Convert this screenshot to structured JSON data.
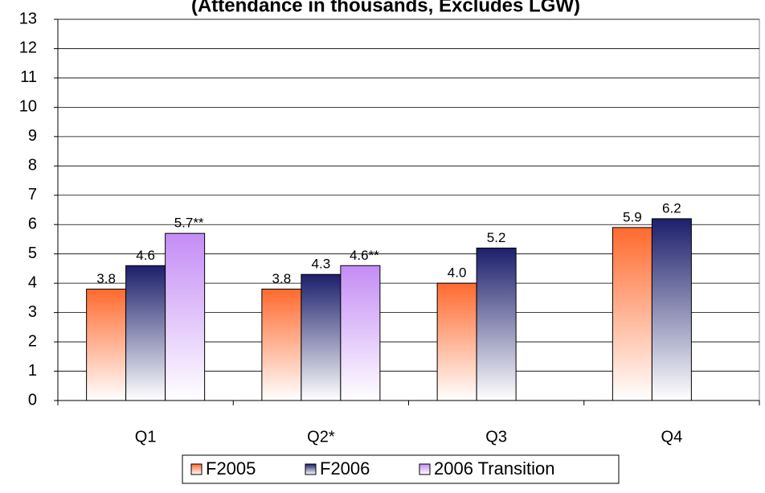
{
  "chart_data": {
    "type": "bar",
    "title": "(Attendance in thousands, Excludes LGW)",
    "categories": [
      "Q1",
      "Q2*",
      "Q3",
      "Q4"
    ],
    "series": [
      {
        "name": "F2005",
        "color": "#ff6a2e",
        "values": [
          3.8,
          3.8,
          4.0,
          5.9
        ],
        "value_labels": [
          "3.8",
          "3.8",
          "4.0",
          "5.9"
        ]
      },
      {
        "name": "F2006",
        "color": "#1c1f6b",
        "values": [
          4.6,
          4.3,
          5.2,
          6.2
        ]
      },
      {
        "name": "2006 Transition",
        "color": "#c48cf5",
        "values": [
          5.7,
          4.6,
          null,
          null
        ],
        "value_labels": [
          "5.7**",
          "4.6**",
          null,
          null
        ]
      }
    ],
    "ylim": [
      0,
      13
    ],
    "yticks": [
      0,
      1,
      2,
      3,
      4,
      5,
      6,
      7,
      8,
      9,
      10,
      11,
      12,
      13
    ],
    "grid": true,
    "legend": "bottom"
  }
}
